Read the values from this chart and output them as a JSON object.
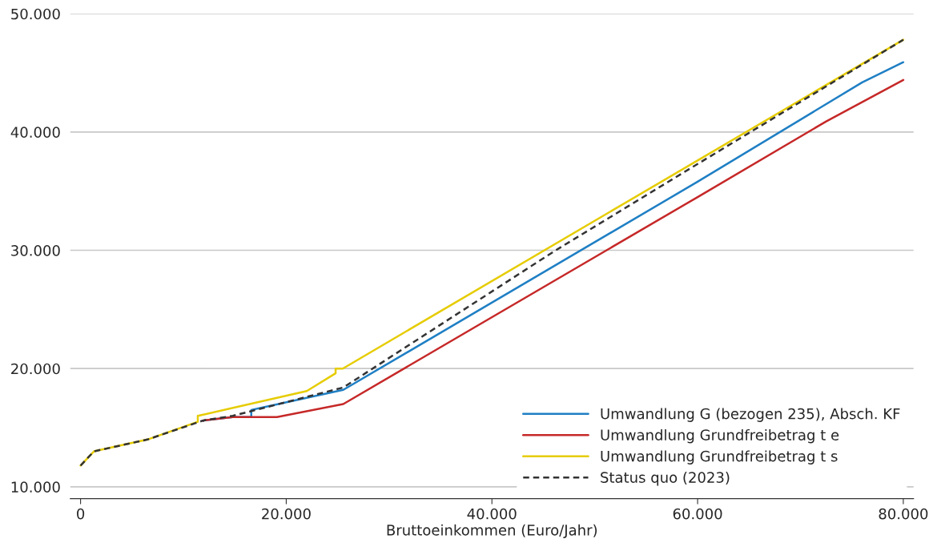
{
  "chart_data": {
    "type": "line",
    "xlabel": "Bruttoeinkommen (Euro/Jahr)",
    "xlim": [
      -1000,
      81000
    ],
    "xticks": [
      {
        "value": 0,
        "label": "0"
      },
      {
        "value": 20000,
        "label": "20.000"
      },
      {
        "value": 40000,
        "label": "40.000"
      },
      {
        "value": 60000,
        "label": "60.000"
      },
      {
        "value": 80000,
        "label": "80.000"
      }
    ],
    "ylim": [
      9000,
      50000
    ],
    "yticks": [
      {
        "value": 10000,
        "label": "10.000"
      },
      {
        "value": 20000,
        "label": "20.000"
      },
      {
        "value": 30000,
        "label": "30.000"
      },
      {
        "value": 40000,
        "label": "40.000"
      },
      {
        "value": 50000,
        "label": "50.000"
      }
    ],
    "grid": "y",
    "legend": "bottom right",
    "line_style": "solid",
    "series": [
      {
        "name": "Umwandlung G (bezogen 235), Absch. KF",
        "color": "#1f7fc4",
        "x": [
          11900,
          14800,
          16600,
          16600,
          25550,
          60000,
          76000,
          80000
        ],
        "values": [
          15600,
          15900,
          15900,
          16500,
          18200,
          35800,
          44200,
          45900
        ]
      },
      {
        "name": "Umwandlung Grundfreibetrag t e",
        "color": "#c62828",
        "x": [
          11900,
          14800,
          19100,
          25550,
          60000,
          72500,
          80000
        ],
        "values": [
          15600,
          15900,
          15900,
          17000,
          34500,
          40900,
          44400
        ]
      },
      {
        "name": "Umwandlung Grundfreibetrag t s",
        "color": "#e6cc00",
        "x": [
          0,
          1300,
          6500,
          11400,
          11400,
          22000,
          24800,
          24800,
          25500,
          60000,
          80000
        ],
        "values": [
          11800,
          13000,
          14000,
          15500,
          16000,
          18100,
          19600,
          20000,
          20000,
          37600,
          47800
        ]
      },
      {
        "name": "Status quo (2023)",
        "color": "#333333",
        "line_style": "dashed",
        "x": [
          0,
          1300,
          6500,
          11900,
          14800,
          25550,
          46200,
          60000,
          80000
        ],
        "values": [
          11800,
          13000,
          14000,
          15600,
          16000,
          18400,
          30000,
          37300,
          47800
        ]
      }
    ]
  }
}
